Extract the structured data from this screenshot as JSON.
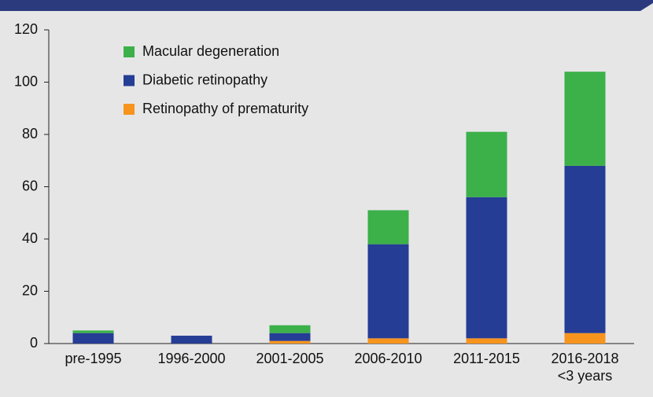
{
  "chart_data": {
    "type": "stacked_bar",
    "categories": [
      "pre-1995",
      "1996-2000",
      "2001-2005",
      "2006-2010",
      "2011-2015",
      "2016-2018"
    ],
    "category_note": "<3 years",
    "series": [
      {
        "name": "Retinopathy of prematurity",
        "color": "#f7941d",
        "values": [
          0,
          0,
          1,
          2,
          2,
          4
        ]
      },
      {
        "name": "Diabetic retinopathy",
        "color": "#253d95",
        "values": [
          4,
          3,
          3,
          36,
          54,
          64
        ]
      },
      {
        "name": "Macular degeneration",
        "color": "#3cb049",
        "values": [
          1,
          0,
          3,
          13,
          25,
          36
        ]
      }
    ],
    "ylim": [
      0,
      120
    ],
    "yticks": [
      0,
      20,
      40,
      60,
      80,
      100,
      120
    ],
    "grid": false,
    "legend": "top-left"
  }
}
